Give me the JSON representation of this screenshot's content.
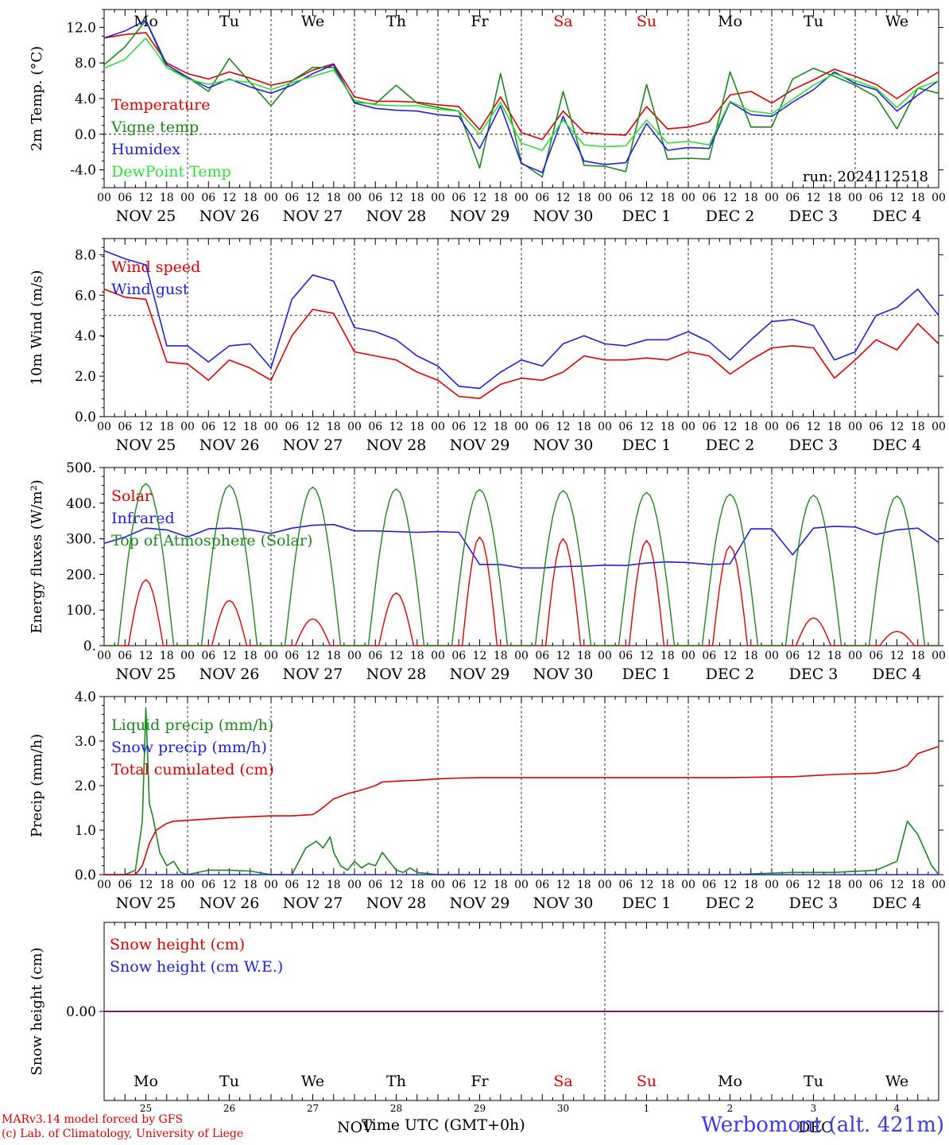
{
  "run_label": "run: 2024112518",
  "site_label": "Werbomont (alt. 421m)",
  "footer": {
    "line1": "MARv3.14 model forced by GFS",
    "line2": "(c) Lab. of Climatology, University of Liege"
  },
  "xaxis_title": "Time UTC (GMT+0h)",
  "month_overlays": [
    "NOV",
    "DEC"
  ],
  "colors": {
    "red": "#e00000",
    "green": "#1a8a1a",
    "blue": "#2020e0",
    "lightgreen": "#30e030",
    "purple": "#800080"
  },
  "days": {
    "weekday_labels": [
      "Mo",
      "Tu",
      "We",
      "Th",
      "Fr",
      "Sa",
      "Su",
      "Mo",
      "Tu",
      "We"
    ],
    "weekend_index": [
      5,
      6
    ],
    "date_labels": [
      "NOV 25",
      "NOV 26",
      "NOV 27",
      "NOV 28",
      "NOV 29",
      "NOV 30",
      "DEC  1",
      "DEC  2",
      "DEC  3",
      "DEC  4"
    ],
    "day_numbers": [
      "25",
      "26",
      "27",
      "28",
      "29",
      "30",
      "1",
      "2",
      "3",
      "4"
    ],
    "hour_ticks": [
      "00",
      "06",
      "12",
      "18"
    ],
    "final_tick": "00"
  },
  "chart_data": [
    {
      "type": "line",
      "ylabel": "2m Temp. (°C)",
      "ylim": [
        -6.0,
        14.0
      ],
      "yticks": [
        -4.0,
        0.0,
        4.0,
        8.0,
        12.0
      ],
      "ytick_labels": [
        "-4.0",
        "0.0",
        "4.0",
        "8.0",
        "12.0"
      ],
      "reference_line": 0,
      "x_unit": "hours since NOV 25 00 UTC",
      "series": [
        {
          "name": "Temperature",
          "color": "red",
          "x": [
            0,
            6,
            12,
            18,
            24,
            30,
            36,
            42,
            48,
            54,
            60,
            66,
            72,
            78,
            84,
            90,
            96,
            102,
            108,
            114,
            120,
            126,
            132,
            138,
            144,
            150,
            156,
            162,
            168,
            174,
            180,
            186,
            192,
            198,
            204,
            210,
            216,
            222,
            228,
            234,
            240
          ],
          "y": [
            10.8,
            11.2,
            11.4,
            8.0,
            6.8,
            6.2,
            7.0,
            6.3,
            5.5,
            6.0,
            7.2,
            7.9,
            4.2,
            3.7,
            3.7,
            3.6,
            3.3,
            3.1,
            0.5,
            4.2,
            0.2,
            -0.6,
            2.6,
            0.2,
            0.0,
            -0.1,
            3.1,
            0.6,
            0.8,
            1.4,
            4.4,
            4.8,
            3.5,
            5.0,
            6.1,
            7.3,
            6.5,
            5.6,
            4.0,
            5.6,
            7.0
          ]
        },
        {
          "name": "Vigne temp",
          "color": "green",
          "x": [
            0,
            6,
            12,
            18,
            24,
            30,
            36,
            42,
            48,
            54,
            60,
            66,
            72,
            78,
            84,
            90,
            96,
            102,
            108,
            114,
            120,
            126,
            132,
            138,
            144,
            150,
            156,
            162,
            168,
            174,
            180,
            186,
            192,
            198,
            204,
            210,
            216,
            222,
            228,
            234,
            240
          ],
          "y": [
            7.8,
            9.8,
            12.8,
            7.5,
            6.4,
            4.8,
            8.5,
            5.8,
            3.2,
            6.0,
            7.5,
            7.5,
            3.6,
            3.4,
            5.5,
            3.5,
            3.0,
            2.6,
            -3.8,
            6.8,
            -3.2,
            -4.8,
            4.8,
            -3.5,
            -3.6,
            -4.2,
            5.6,
            -2.8,
            -2.7,
            -2.8,
            7.0,
            0.8,
            0.8,
            6.2,
            7.4,
            6.5,
            5.5,
            4.2,
            0.6,
            5.2,
            4.6
          ]
        },
        {
          "name": "Humidex",
          "color": "blue",
          "x": [
            0,
            6,
            12,
            18,
            24,
            30,
            36,
            42,
            48,
            54,
            60,
            66,
            72,
            78,
            84,
            90,
            96,
            102,
            108,
            114,
            120,
            126,
            132,
            138,
            144,
            150,
            156,
            162,
            168,
            174,
            180,
            186,
            192,
            198,
            204,
            210,
            216,
            222,
            228,
            234,
            240
          ],
          "y": [
            10.8,
            11.6,
            12.8,
            7.8,
            6.4,
            5.2,
            6.2,
            5.3,
            4.6,
            5.5,
            6.8,
            7.8,
            3.5,
            2.9,
            2.7,
            2.6,
            2.2,
            2.0,
            -1.6,
            3.2,
            -3.3,
            -4.3,
            2.0,
            -3.0,
            -3.4,
            -3.2,
            1.2,
            -1.8,
            -1.5,
            -1.6,
            3.6,
            2.2,
            2.0,
            3.6,
            5.0,
            7.0,
            5.7,
            5.0,
            2.6,
            4.4,
            6.0
          ]
        },
        {
          "name": "DewPoint Temp",
          "color": "lightgreen",
          "x": [
            0,
            6,
            12,
            18,
            24,
            30,
            36,
            42,
            48,
            54,
            60,
            66,
            72,
            78,
            84,
            90,
            96,
            102,
            108,
            114,
            120,
            126,
            132,
            138,
            144,
            150,
            156,
            162,
            168,
            174,
            180,
            186,
            192,
            198,
            204,
            210,
            216,
            222,
            228,
            234,
            240
          ],
          "y": [
            7.4,
            8.4,
            10.8,
            7.5,
            6.2,
            5.6,
            6.1,
            5.8,
            5.0,
            5.8,
            6.5,
            7.2,
            3.8,
            3.3,
            3.2,
            3.2,
            2.8,
            2.6,
            0.0,
            3.6,
            -1.0,
            -1.8,
            1.6,
            -1.2,
            -1.4,
            -1.3,
            1.6,
            -1.0,
            -0.8,
            -1.2,
            3.7,
            2.6,
            2.3,
            3.9,
            5.5,
            6.8,
            6.0,
            5.2,
            3.0,
            5.2,
            6.0
          ]
        }
      ]
    },
    {
      "type": "line",
      "ylabel": "10m Wind (m/s)",
      "ylim": [
        0.0,
        8.8
      ],
      "yticks": [
        0.0,
        2.0,
        4.0,
        6.0,
        8.0
      ],
      "ytick_labels": [
        "0.0",
        "2.0",
        "4.0",
        "6.0",
        "8.0"
      ],
      "reference_line": 5.0,
      "x_unit": "hours since NOV 25 00 UTC",
      "series": [
        {
          "name": "Wind speed",
          "color": "red",
          "x": [
            0,
            6,
            12,
            18,
            24,
            30,
            36,
            42,
            48,
            54,
            60,
            66,
            72,
            78,
            84,
            90,
            96,
            102,
            108,
            114,
            120,
            126,
            132,
            138,
            144,
            150,
            156,
            162,
            168,
            174,
            180,
            186,
            192,
            198,
            204,
            210,
            216,
            222,
            228,
            234,
            240
          ],
          "y": [
            6.3,
            5.9,
            5.8,
            2.7,
            2.6,
            1.8,
            2.8,
            2.4,
            1.8,
            4.0,
            5.3,
            5.1,
            3.2,
            3.0,
            2.8,
            2.2,
            1.8,
            1.0,
            0.9,
            1.6,
            1.9,
            1.8,
            2.2,
            3.0,
            2.8,
            2.8,
            2.9,
            2.8,
            3.2,
            3.0,
            2.1,
            2.8,
            3.4,
            3.5,
            3.4,
            1.9,
            2.8,
            3.8,
            3.3,
            4.6,
            3.6
          ]
        },
        {
          "name": "Wind gust",
          "color": "blue",
          "x": [
            0,
            6,
            12,
            18,
            24,
            30,
            36,
            42,
            48,
            54,
            60,
            66,
            72,
            78,
            84,
            90,
            96,
            102,
            108,
            114,
            120,
            126,
            132,
            138,
            144,
            150,
            156,
            162,
            168,
            174,
            180,
            186,
            192,
            198,
            204,
            210,
            216,
            222,
            228,
            234,
            240
          ],
          "y": [
            8.2,
            7.8,
            7.5,
            3.5,
            3.5,
            2.7,
            3.5,
            3.6,
            2.4,
            5.8,
            7.0,
            6.7,
            4.4,
            4.2,
            3.8,
            3.0,
            2.5,
            1.5,
            1.4,
            2.2,
            2.8,
            2.5,
            3.6,
            4.0,
            3.6,
            3.5,
            3.8,
            3.8,
            4.2,
            3.7,
            2.8,
            3.8,
            4.7,
            4.8,
            4.5,
            2.8,
            3.2,
            5.0,
            5.4,
            6.3,
            5.0
          ]
        }
      ]
    },
    {
      "type": "line",
      "ylabel": "Energy fluxes (W/m²)",
      "ylim": [
        0,
        500
      ],
      "yticks": [
        0,
        100,
        200,
        300,
        400,
        500
      ],
      "ytick_labels": [
        "0.",
        "100.",
        "200.",
        "300.",
        "400.",
        "500."
      ],
      "x_unit": "hours since NOV 25 00 UTC",
      "solar_day_peaks": {
        "solar_peak_hour": 12,
        "Solar": [
          185,
          127,
          75,
          148,
          305,
          300,
          295,
          280,
          78,
          40
        ],
        "Top of Atmosphere (Solar)": [
          455,
          450,
          445,
          440,
          438,
          435,
          430,
          425,
          422,
          420
        ]
      },
      "series": [
        {
          "name": "Solar",
          "color": "red",
          "diurnal": true
        },
        {
          "name": "Infrared",
          "color": "blue",
          "x": [
            0,
            6,
            12,
            18,
            24,
            30,
            36,
            42,
            48,
            54,
            60,
            66,
            72,
            78,
            84,
            90,
            96,
            102,
            108,
            114,
            120,
            126,
            132,
            138,
            144,
            150,
            156,
            162,
            168,
            174,
            180,
            186,
            192,
            198,
            204,
            210,
            216,
            222,
            228,
            234,
            240
          ],
          "y": [
            287,
            305,
            330,
            325,
            305,
            328,
            330,
            325,
            315,
            330,
            338,
            340,
            322,
            322,
            320,
            318,
            320,
            318,
            228,
            228,
            218,
            218,
            222,
            223,
            226,
            225,
            232,
            235,
            233,
            228,
            230,
            328,
            328,
            255,
            330,
            335,
            333,
            312,
            325,
            330,
            290
          ]
        },
        {
          "name": "Top of Atmosphere (Solar)",
          "color": "green",
          "diurnal": true
        }
      ]
    },
    {
      "type": "line",
      "ylabel": "Precip (mm/h)",
      "ylim": [
        0.0,
        4.0
      ],
      "yticks": [
        0.0,
        1.0,
        2.0,
        3.0,
        4.0
      ],
      "ytick_labels": [
        "0.0",
        "1.0",
        "2.0",
        "3.0",
        "4.0"
      ],
      "x_unit": "hours since NOV 25 00 UTC",
      "series": [
        {
          "name": "Liquid precip (mm/h)",
          "color": "green",
          "x": [
            0,
            6,
            9,
            11,
            12,
            13,
            14,
            16,
            18,
            20,
            22,
            24,
            30,
            36,
            42,
            48,
            54,
            58,
            61,
            63,
            65,
            66,
            68,
            70,
            72,
            74,
            76,
            78,
            80,
            82,
            84,
            86,
            88,
            90,
            96,
            102,
            108,
            150,
            180,
            198,
            210,
            222,
            228,
            231,
            234,
            238,
            240
          ],
          "y": [
            0,
            0,
            0.1,
            1.2,
            3.75,
            1.6,
            1.3,
            0.5,
            0.2,
            0.3,
            0.05,
            0,
            0.1,
            0.1,
            0.08,
            0,
            0,
            0.6,
            0.75,
            0.6,
            0.85,
            0.5,
            0.2,
            0.1,
            0.3,
            0.15,
            0.25,
            0.2,
            0.5,
            0.3,
            0.1,
            0.05,
            0.15,
            0.05,
            0,
            0,
            0,
            0,
            0,
            0.05,
            0.05,
            0.1,
            0.3,
            1.2,
            0.9,
            0.2,
            0
          ]
        },
        {
          "name": "Snow precip (mm/h)",
          "color": "blue",
          "x": [
            0,
            240
          ],
          "y": [
            0,
            0
          ]
        },
        {
          "name": "Total cumulated (cm)",
          "color": "red",
          "x": [
            0,
            9,
            11,
            13,
            15,
            18,
            20,
            24,
            30,
            36,
            42,
            48,
            54,
            60,
            62,
            66,
            70,
            74,
            78,
            80,
            84,
            90,
            96,
            102,
            108,
            114,
            120,
            150,
            180,
            198,
            210,
            222,
            228,
            231,
            234,
            240
          ],
          "y": [
            0,
            0,
            0.2,
            0.7,
            1.0,
            1.15,
            1.2,
            1.22,
            1.25,
            1.28,
            1.3,
            1.32,
            1.32,
            1.35,
            1.45,
            1.7,
            1.82,
            1.9,
            2.0,
            2.08,
            2.1,
            2.12,
            2.15,
            2.17,
            2.18,
            2.18,
            2.18,
            2.18,
            2.18,
            2.2,
            2.25,
            2.28,
            2.35,
            2.45,
            2.72,
            2.88
          ]
        }
      ]
    },
    {
      "type": "line",
      "ylabel": "Snow height (cm)",
      "ylim": [
        -1,
        1
      ],
      "yticks": [
        0.0
      ],
      "ytick_labels": [
        "0.00"
      ],
      "x_unit": "hours since NOV 25 00 UTC",
      "series": [
        {
          "name": "Snow height (cm)",
          "color": "red",
          "x": [
            0,
            240
          ],
          "y": [
            0,
            0
          ]
        },
        {
          "name": "Snow height (cm W.E.)",
          "color": "blue",
          "x": [
            0,
            240
          ],
          "y": [
            0,
            0
          ]
        }
      ]
    }
  ]
}
